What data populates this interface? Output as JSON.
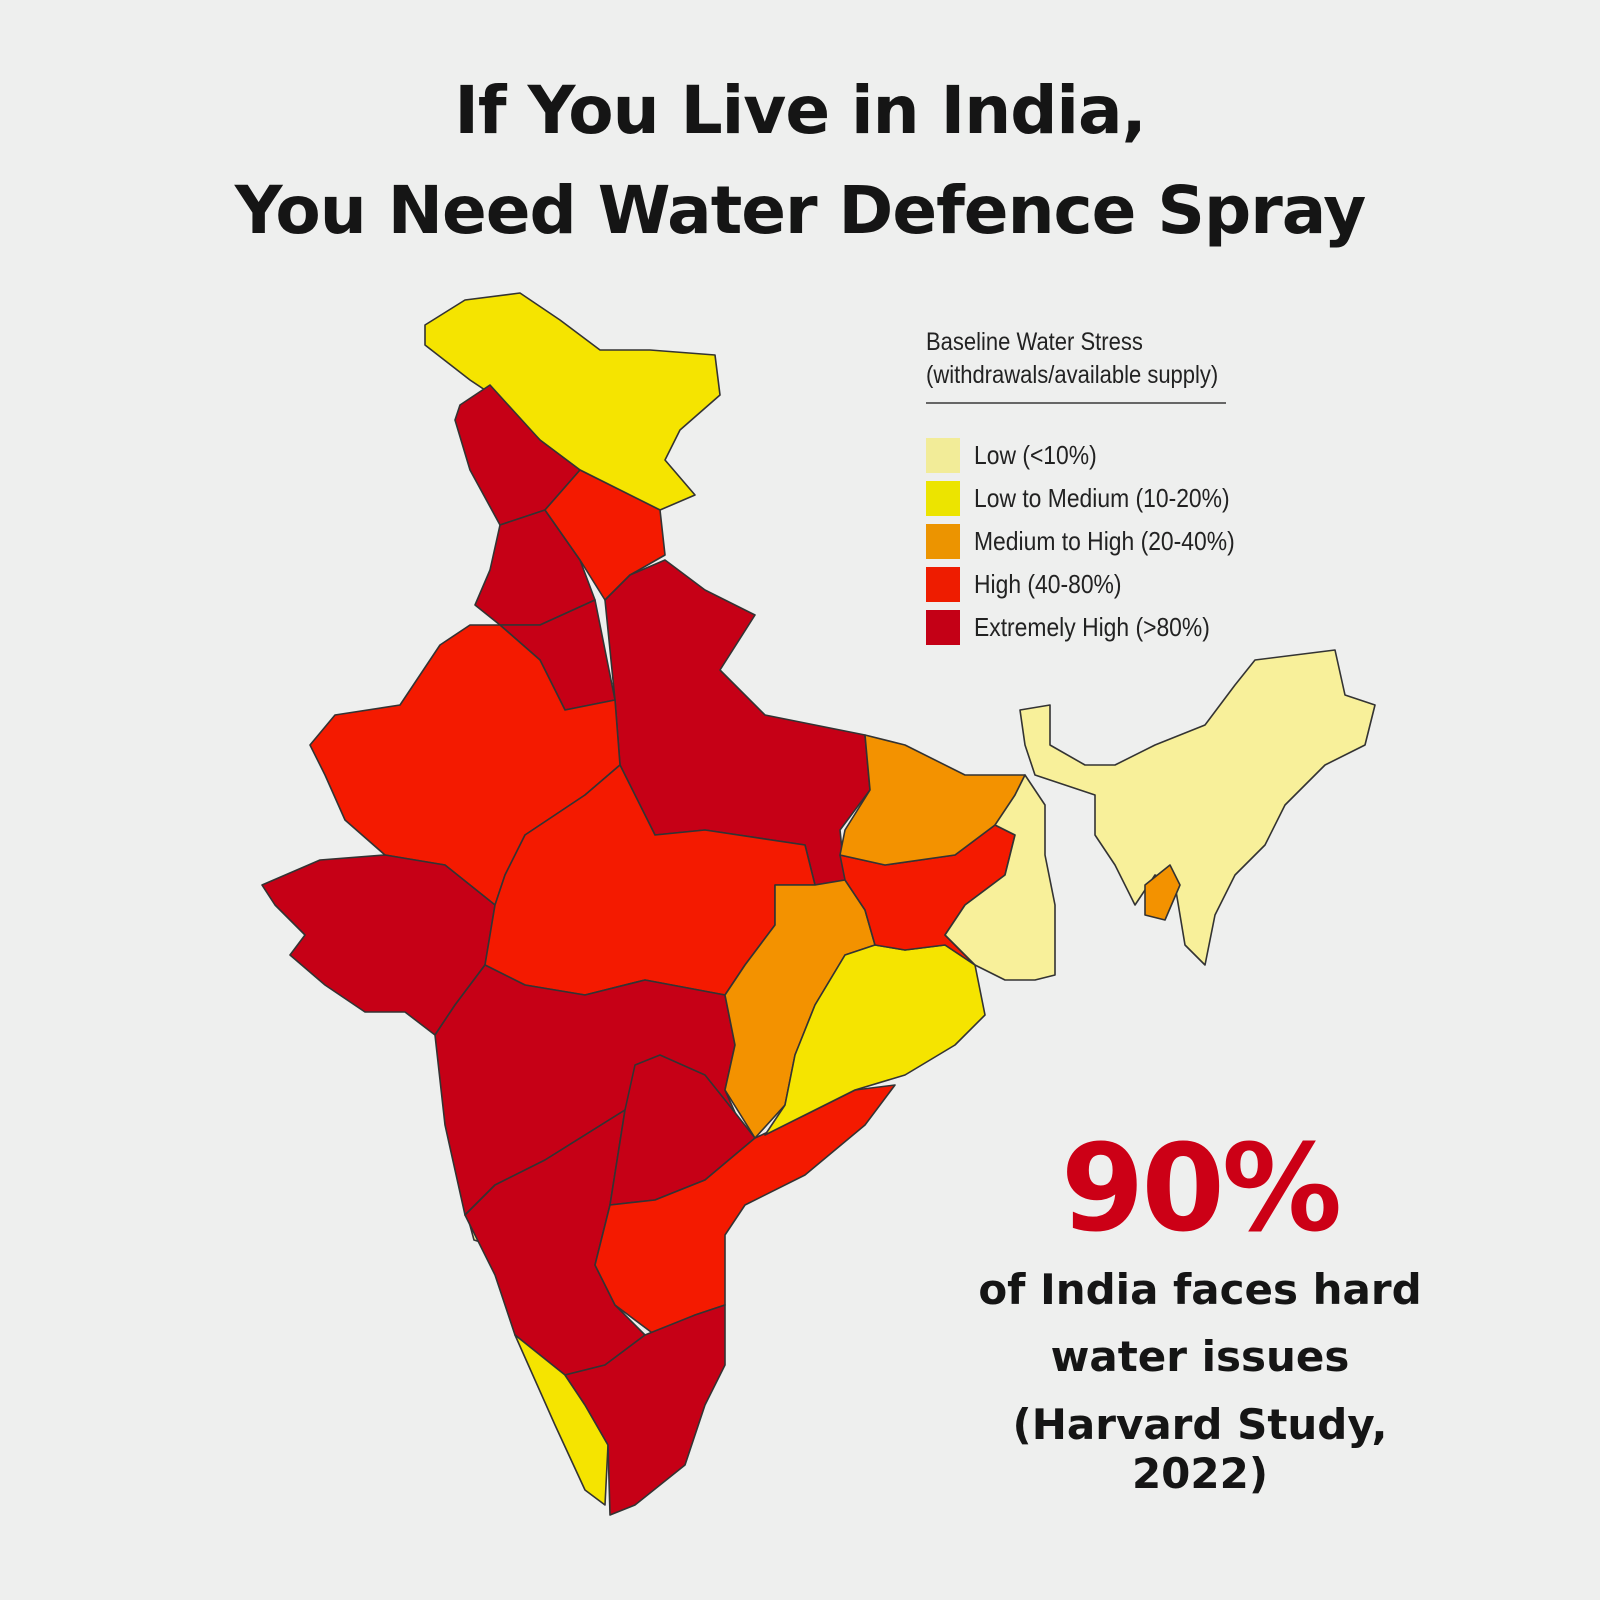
{
  "title": {
    "line1": "If You Live in India,",
    "line2": "You Need Water Defence Spray"
  },
  "legend": {
    "title": "Baseline Water Stress",
    "subtitle": "(withdrawals/available supply)",
    "items": [
      {
        "label": "Low (<10%)",
        "color": "#f2ec98"
      },
      {
        "label": "Low to Medium (10-20%)",
        "color": "#ece400"
      },
      {
        "label": "Medium to High (20-40%)",
        "color": "#ec9400"
      },
      {
        "label": "High (40-80%)",
        "color": "#ee1c00"
      },
      {
        "label": "Extremely High (>80%)",
        "color": "#c40016"
      }
    ]
  },
  "stat": {
    "value": "90%",
    "line1": "of India faces hard",
    "line2": "water issues",
    "line3": "(Harvard Study, 2022)"
  }
}
